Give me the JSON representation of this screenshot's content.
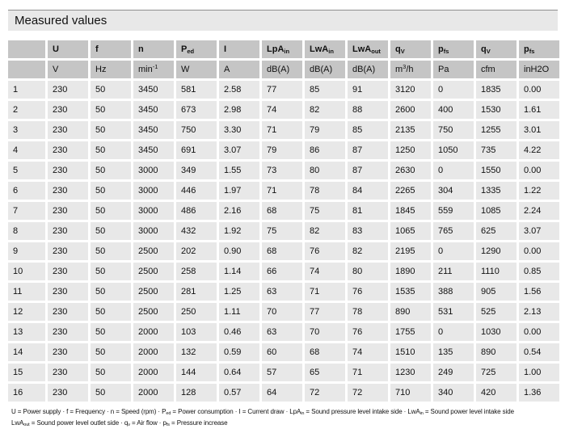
{
  "title": "Measured values",
  "colors": {
    "title_bar_bg": "#e8e8e8",
    "header_cell_bg": "#c5c5c5",
    "data_cell_bg": "#e8e8e8",
    "gap": "#ffffff",
    "text": "#111111"
  },
  "table": {
    "headers": [
      "",
      "U",
      "f",
      "n",
      "P_{ed}",
      "I",
      "LpA_{in}",
      "LwA_{in}",
      "LwA_{out}",
      "q_{V}",
      "p_{fs}",
      "q_{V}",
      "p_{fs}"
    ],
    "units": [
      "",
      "V",
      "Hz",
      "min^{-1}",
      "W",
      "A",
      "dB(A)",
      "dB(A)",
      "dB(A)",
      "m^{3}/h",
      "Pa",
      "cfm",
      "inH2O"
    ],
    "rows": [
      [
        "1",
        "230",
        "50",
        "3450",
        "581",
        "2.58",
        "77",
        "85",
        "91",
        "3120",
        "0",
        "1835",
        "0.00"
      ],
      [
        "2",
        "230",
        "50",
        "3450",
        "673",
        "2.98",
        "74",
        "82",
        "88",
        "2600",
        "400",
        "1530",
        "1.61"
      ],
      [
        "3",
        "230",
        "50",
        "3450",
        "750",
        "3.30",
        "71",
        "79",
        "85",
        "2135",
        "750",
        "1255",
        "3.01"
      ],
      [
        "4",
        "230",
        "50",
        "3450",
        "691",
        "3.07",
        "79",
        "86",
        "87",
        "1250",
        "1050",
        "735",
        "4.22"
      ],
      [
        "5",
        "230",
        "50",
        "3000",
        "349",
        "1.55",
        "73",
        "80",
        "87",
        "2630",
        "0",
        "1550",
        "0.00"
      ],
      [
        "6",
        "230",
        "50",
        "3000",
        "446",
        "1.97",
        "71",
        "78",
        "84",
        "2265",
        "304",
        "1335",
        "1.22"
      ],
      [
        "7",
        "230",
        "50",
        "3000",
        "486",
        "2.16",
        "68",
        "75",
        "81",
        "1845",
        "559",
        "1085",
        "2.24"
      ],
      [
        "8",
        "230",
        "50",
        "3000",
        "432",
        "1.92",
        "75",
        "82",
        "83",
        "1065",
        "765",
        "625",
        "3.07"
      ],
      [
        "9",
        "230",
        "50",
        "2500",
        "202",
        "0.90",
        "68",
        "76",
        "82",
        "2195",
        "0",
        "1290",
        "0.00"
      ],
      [
        "10",
        "230",
        "50",
        "2500",
        "258",
        "1.14",
        "66",
        "74",
        "80",
        "1890",
        "211",
        "1110",
        "0.85"
      ],
      [
        "11",
        "230",
        "50",
        "2500",
        "281",
        "1.25",
        "63",
        "71",
        "76",
        "1535",
        "388",
        "905",
        "1.56"
      ],
      [
        "12",
        "230",
        "50",
        "2500",
        "250",
        "1.11",
        "70",
        "77",
        "78",
        "890",
        "531",
        "525",
        "2.13"
      ],
      [
        "13",
        "230",
        "50",
        "2000",
        "103",
        "0.46",
        "63",
        "70",
        "76",
        "1755",
        "0",
        "1030",
        "0.00"
      ],
      [
        "14",
        "230",
        "50",
        "2000",
        "132",
        "0.59",
        "60",
        "68",
        "74",
        "1510",
        "135",
        "890",
        "0.54"
      ],
      [
        "15",
        "230",
        "50",
        "2000",
        "144",
        "0.64",
        "57",
        "65",
        "71",
        "1230",
        "249",
        "725",
        "1.00"
      ],
      [
        "16",
        "230",
        "50",
        "2000",
        "128",
        "0.57",
        "64",
        "72",
        "72",
        "710",
        "340",
        "420",
        "1.36"
      ]
    ]
  },
  "legend": {
    "line1": "U = Power supply · f = Frequency · n = Speed (rpm) · P_{ed} = Power consumption · I = Current draw · LpA_{in} = Sound pressure level intake side · LwA_{in} = Sound power level intake side",
    "line2": "LwA_{out} = Sound power level outlet side · q_{v} = Air flow · p_{fs} = Pressure increase"
  }
}
